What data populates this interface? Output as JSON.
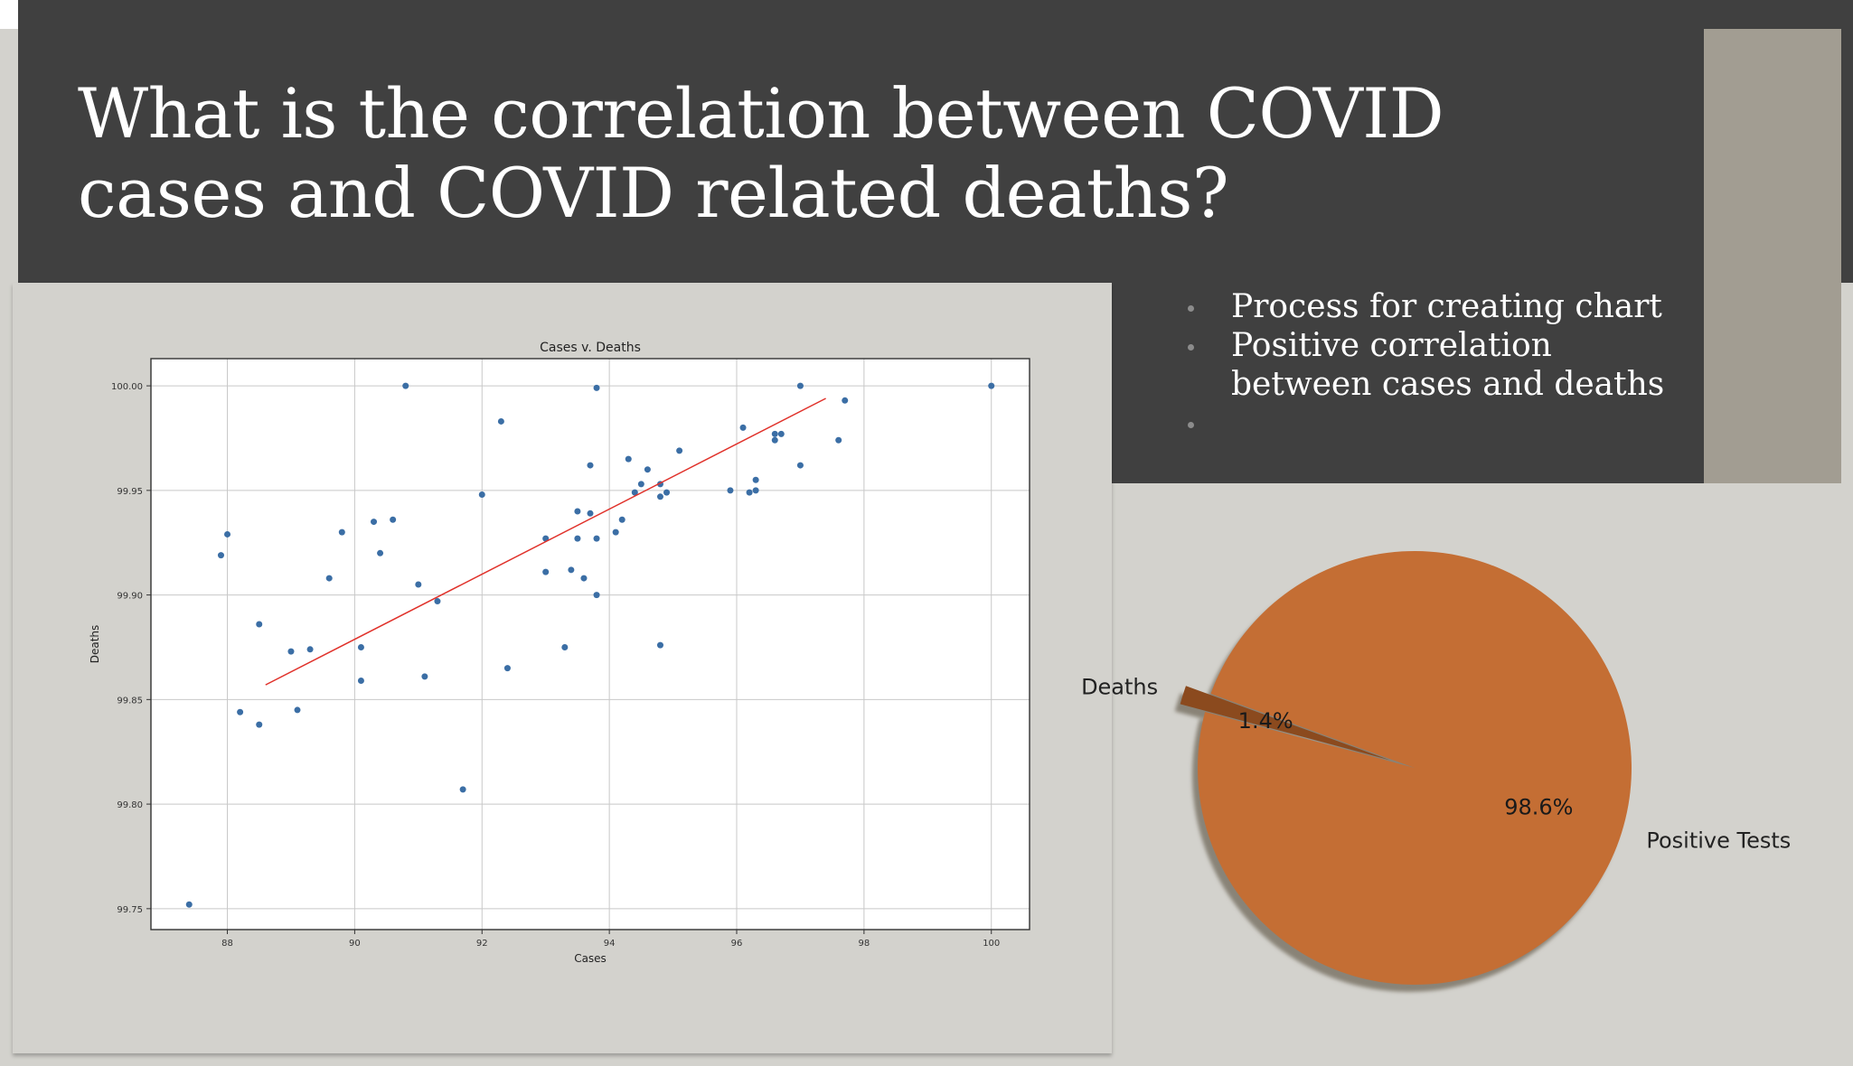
{
  "slide": {
    "title": "What is the correlation between COVID cases and COVID related deaths?",
    "bullets": [
      {
        "text": "Process for creating chart"
      },
      {
        "text": "Positive correlation between cases and deaths"
      },
      {
        "text": ""
      }
    ],
    "colors": {
      "dark_band": "#404040",
      "background": "#d3d2cd",
      "accent_bar": "#a29d92",
      "title_text": "#ffffff",
      "scatter_point": "#3b6ea5",
      "trend_line": "#e0312a",
      "pie_positive": "#c46e34",
      "pie_deaths": "#8b4a1e"
    }
  },
  "chart_data": [
    {
      "type": "scatter",
      "title": "Cases v. Deaths",
      "xlabel": "Cases",
      "ylabel": "Deaths",
      "xlim": [
        86.8,
        100.6
      ],
      "ylim": [
        99.74,
        100.013
      ],
      "xticks": [
        "88",
        "90",
        "92",
        "94",
        "96",
        "98",
        "100"
      ],
      "yticks": [
        "99.75",
        "99.80",
        "99.85",
        "99.90",
        "99.95",
        "100.00"
      ],
      "grid": true,
      "points": [
        [
          87.4,
          99.752
        ],
        [
          87.9,
          99.919
        ],
        [
          88.0,
          99.929
        ],
        [
          88.2,
          99.844
        ],
        [
          88.5,
          99.886
        ],
        [
          88.5,
          99.838
        ],
        [
          89.0,
          99.873
        ],
        [
          89.1,
          99.845
        ],
        [
          89.3,
          99.874
        ],
        [
          89.6,
          99.908
        ],
        [
          89.8,
          99.93
        ],
        [
          90.1,
          99.875
        ],
        [
          90.1,
          99.859
        ],
        [
          90.3,
          99.935
        ],
        [
          90.4,
          99.92
        ],
        [
          90.6,
          99.936
        ],
        [
          90.8,
          100.0
        ],
        [
          91.0,
          99.905
        ],
        [
          91.1,
          99.861
        ],
        [
          91.3,
          99.897
        ],
        [
          91.7,
          99.807
        ],
        [
          92.0,
          99.948
        ],
        [
          92.3,
          99.983
        ],
        [
          92.4,
          99.865
        ],
        [
          93.0,
          99.927
        ],
        [
          93.0,
          99.911
        ],
        [
          93.3,
          99.875
        ],
        [
          93.4,
          99.912
        ],
        [
          93.5,
          99.94
        ],
        [
          93.5,
          99.927
        ],
        [
          93.6,
          99.908
        ],
        [
          93.7,
          99.962
        ],
        [
          93.7,
          99.939
        ],
        [
          93.8,
          99.999
        ],
        [
          93.8,
          99.927
        ],
        [
          93.8,
          99.9
        ],
        [
          94.1,
          99.93
        ],
        [
          94.2,
          99.936
        ],
        [
          94.3,
          99.965
        ],
        [
          94.4,
          99.949
        ],
        [
          94.5,
          99.953
        ],
        [
          94.6,
          99.96
        ],
        [
          94.8,
          99.953
        ],
        [
          94.8,
          99.947
        ],
        [
          94.8,
          99.876
        ],
        [
          94.9,
          99.949
        ],
        [
          95.1,
          99.969
        ],
        [
          95.9,
          99.95
        ],
        [
          96.1,
          99.98
        ],
        [
          96.2,
          99.949
        ],
        [
          96.3,
          99.955
        ],
        [
          96.3,
          99.95
        ],
        [
          96.6,
          99.977
        ],
        [
          96.6,
          99.974
        ],
        [
          96.7,
          99.977
        ],
        [
          97.0,
          99.962
        ],
        [
          97.0,
          100.0
        ],
        [
          97.6,
          99.974
        ],
        [
          97.7,
          99.993
        ],
        [
          100.0,
          100.0
        ]
      ],
      "trend_line": {
        "x": [
          88.6,
          97.4
        ],
        "y": [
          99.857,
          99.994
        ]
      }
    },
    {
      "type": "pie",
      "labels": [
        "Deaths",
        "Positive Tests"
      ],
      "values": [
        1.4,
        98.6
      ],
      "autopct": [
        "1.4%",
        "98.6%"
      ],
      "explode": [
        0.12,
        0
      ],
      "shadow": true
    }
  ]
}
